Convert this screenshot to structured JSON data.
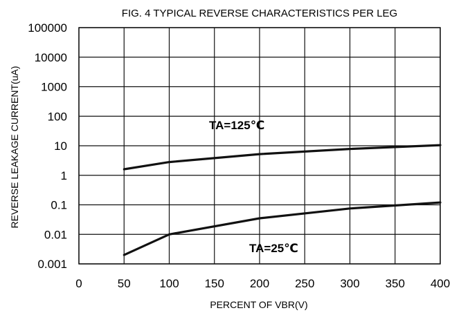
{
  "chart_data": {
    "type": "line",
    "title": "FIG. 4 TYPICAL REVERSE CHARACTERISTICS PER LEG",
    "xlabel": "PERCENT OF VBR(V)",
    "ylabel": "REVERSE LEAKAGE CURRENT(uA)",
    "xlim": [
      0,
      400
    ],
    "ylim": [
      0.001,
      100000
    ],
    "yscale": "log",
    "grid": true,
    "x_ticks": [
      "0",
      "50",
      "100",
      "150",
      "200",
      "250",
      "300",
      "350",
      "400"
    ],
    "y_ticks": [
      "100000",
      "10000",
      "1000",
      "100",
      "10",
      "1",
      "0.1",
      "0.01",
      "0.001"
    ],
    "series": [
      {
        "name": "TA=125℃",
        "x": [
          50,
          100,
          200,
          300,
          400
        ],
        "y": [
          1.6,
          2.8,
          5.2,
          7.8,
          10.5
        ]
      },
      {
        "name": "TA=25℃",
        "x": [
          50,
          100,
          200,
          300,
          400
        ],
        "y": [
          0.002,
          0.01,
          0.035,
          0.075,
          0.12
        ]
      }
    ],
    "colors": {
      "line": "#111111",
      "grid": "#111111",
      "background": "#ffffff"
    }
  }
}
